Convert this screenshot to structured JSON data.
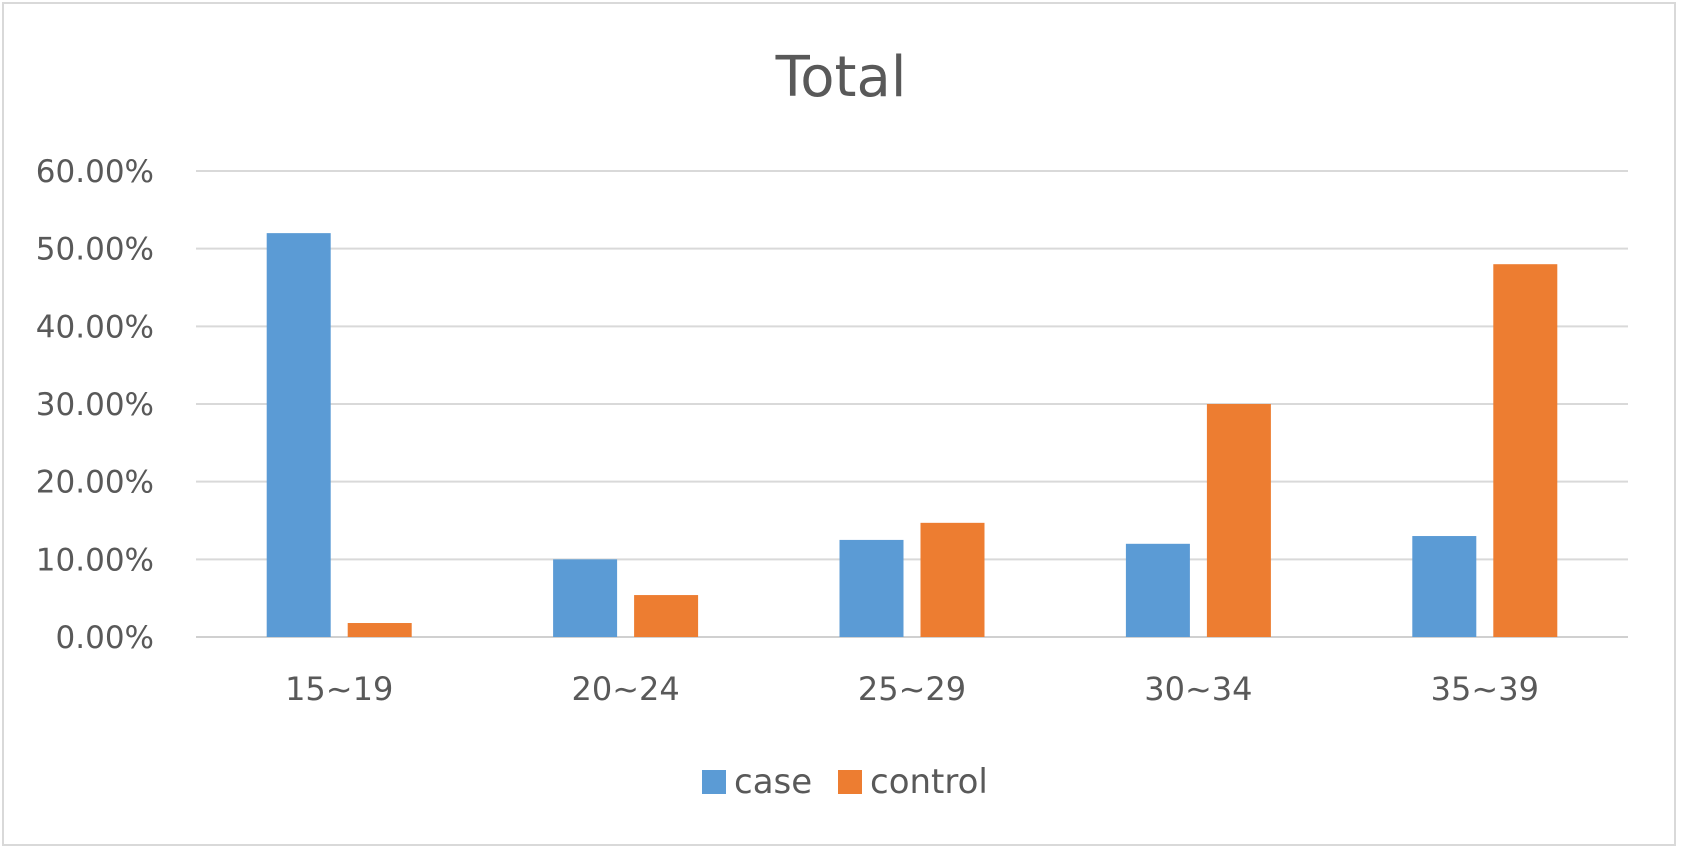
{
  "chart_data": {
    "type": "bar",
    "title": "Total",
    "xlabel": "",
    "ylabel": "",
    "categories": [
      "15~19",
      "20~24",
      "25~29",
      "30~34",
      "35~39"
    ],
    "series": [
      {
        "name": "case",
        "color": "#5b9bd5",
        "values": [
          0.52,
          0.1,
          0.125,
          0.12,
          0.13
        ]
      },
      {
        "name": "control",
        "color": "#ed7d31",
        "values": [
          0.018,
          0.054,
          0.147,
          0.3,
          0.48
        ]
      }
    ],
    "ylim": [
      0,
      0.6
    ],
    "yticks": [
      0,
      0.1,
      0.2,
      0.3,
      0.4,
      0.5,
      0.6
    ],
    "ytick_labels": [
      "0.00%",
      "10.00%",
      "20.00%",
      "30.00%",
      "40.00%",
      "50.00%",
      "60.00%"
    ],
    "grid": true,
    "legend_position": "bottom"
  }
}
